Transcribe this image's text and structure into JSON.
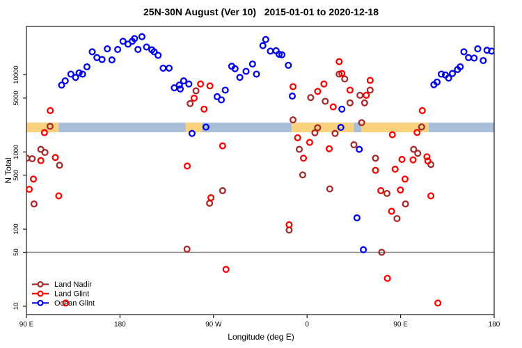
{
  "chart_data": {
    "type": "scatter",
    "title": "25N-30N August (Ver 10)   2015-01-01 to 2020-12-18",
    "xlabel": "Longitude (deg E)",
    "ylabel": "N Total",
    "y_scale": "log10",
    "y_range": [
      8,
      43000
    ],
    "x_range_deg": [
      90,
      540
    ],
    "grid": false,
    "legend_position": "bottom-left",
    "x_ticks": [
      {
        "deg": 90,
        "label": "90 E"
      },
      {
        "deg": 180,
        "label": "180"
      },
      {
        "deg": 270,
        "label": "90 W"
      },
      {
        "deg": 360,
        "label": "0"
      },
      {
        "deg": 450,
        "label": "90 E"
      },
      {
        "deg": 540,
        "label": "180"
      }
    ],
    "y_ticks": [
      {
        "value": 10,
        "label": "10"
      },
      {
        "value": 50,
        "label": "50"
      },
      {
        "value": 100,
        "label": "100"
      },
      {
        "value": 500,
        "label": "500"
      },
      {
        "value": 1000,
        "label": "1000"
      },
      {
        "value": 5000,
        "label": "5000"
      },
      {
        "value": 10000,
        "label": "10000"
      }
    ],
    "reference_line": {
      "value": 50,
      "color": "#808080"
    },
    "surface_band": {
      "value_range": [
        1800,
        2400
      ],
      "ocean_color": "#A9BFD9",
      "land_color": "#FAD17C",
      "land_segments_deg": [
        [
          90,
          121
        ],
        [
          243,
          259
        ],
        [
          345,
          405
        ],
        [
          412,
          477
        ]
      ]
    },
    "series": [
      {
        "name": "Land Nadir",
        "color": "#A52A2A",
        "points": [
          [
            112.7,
            2150
          ],
          [
            103.8,
            1080
          ],
          [
            107.8,
            986
          ],
          [
            95.5,
            818
          ],
          [
            90.3,
            830
          ],
          [
            121.8,
            673
          ],
          [
            97.3,
            212
          ],
          [
            253.1,
            6200
          ],
          [
            247.5,
            4240
          ],
          [
            278.7,
            315
          ],
          [
            266.2,
            216
          ],
          [
            346.5,
            2610
          ],
          [
            363.5,
            5070
          ],
          [
            377.5,
            4540
          ],
          [
            367.5,
            1770
          ],
          [
            370.2,
            2060
          ],
          [
            390.9,
            10200
          ],
          [
            396.2,
            8830
          ],
          [
            401.3,
            4330
          ],
          [
            410.9,
            5430
          ],
          [
            420.7,
            6330
          ],
          [
            415.3,
            4330
          ],
          [
            412.5,
            2400
          ],
          [
            405.1,
            1240
          ],
          [
            425.8,
            830
          ],
          [
            462.5,
            1080
          ],
          [
            466.5,
            960
          ],
          [
            479.1,
            687
          ],
          [
            436.9,
            290
          ],
          [
            454.7,
            212
          ],
          [
            446.5,
            137
          ],
          [
            470.2,
            2110
          ],
          [
            244.5,
            55
          ],
          [
            431.8,
            50
          ],
          [
            342.7,
            97
          ],
          [
            386.9,
            1740
          ],
          [
            352.5,
            1080
          ],
          [
            355.8,
            504
          ],
          [
            381.8,
            332
          ]
        ]
      },
      {
        "name": "Land Glint",
        "color": "#FF0000",
        "points": [
          [
            107.3,
            1780
          ],
          [
            112.9,
            3440
          ],
          [
            103.8,
            774
          ],
          [
            117.8,
            847
          ],
          [
            96.7,
            445
          ],
          [
            92.7,
            328
          ],
          [
            121.1,
            270
          ],
          [
            127.8,
            11
          ],
          [
            257.5,
            7600
          ],
          [
            266.5,
            7180
          ],
          [
            251.3,
            4990
          ],
          [
            260.9,
            3590
          ],
          [
            278.7,
            1200
          ],
          [
            244.7,
            656
          ],
          [
            267.5,
            255
          ],
          [
            282,
            30
          ],
          [
            346.5,
            7030
          ],
          [
            370.2,
            6100
          ],
          [
            376.2,
            7600
          ],
          [
            390.9,
            14800
          ],
          [
            393.5,
            10400
          ],
          [
            401.3,
            6330
          ],
          [
            420.7,
            8460
          ],
          [
            416.9,
            5430
          ],
          [
            385.1,
            3840
          ],
          [
            470.9,
            3440
          ],
          [
            350.9,
            1530
          ],
          [
            362.5,
            1330
          ],
          [
            381.3,
            1100
          ],
          [
            356.5,
            830
          ],
          [
            442,
            1670
          ],
          [
            465.8,
            1790
          ],
          [
            462,
            790
          ],
          [
            475.3,
            865
          ],
          [
            476.2,
            764
          ],
          [
            425.8,
            578
          ],
          [
            444.7,
            598
          ],
          [
            454.2,
            445
          ],
          [
            430.9,
            315
          ],
          [
            449.8,
            321
          ],
          [
            479.1,
            270
          ],
          [
            441.3,
            170
          ],
          [
            342.7,
            114
          ],
          [
            437.3,
            23
          ],
          [
            485.8,
            11
          ],
          [
            451.3,
            800
          ]
        ]
      },
      {
        "name": "Ocean Glint",
        "color": "#0000EE",
        "points": [
          [
            123.8,
            7360
          ],
          [
            127.3,
            8350
          ],
          [
            132.7,
            10200
          ],
          [
            137.3,
            9260
          ],
          [
            140.7,
            10600
          ],
          [
            144,
            10200
          ],
          [
            148.2,
            12700
          ],
          [
            153.3,
            19900
          ],
          [
            157.8,
            16700
          ],
          [
            162.7,
            15800
          ],
          [
            167.8,
            21700
          ],
          [
            172.2,
            15600
          ],
          [
            177.8,
            21300
          ],
          [
            182.9,
            27200
          ],
          [
            187.8,
            25000
          ],
          [
            191.8,
            27200
          ],
          [
            194,
            29500
          ],
          [
            201.1,
            31200
          ],
          [
            197.3,
            21300
          ],
          [
            205.5,
            22900
          ],
          [
            210.7,
            21100
          ],
          [
            212.9,
            19900
          ],
          [
            216.7,
            17900
          ],
          [
            221.5,
            12200
          ],
          [
            227.3,
            12200
          ],
          [
            232.2,
            6780
          ],
          [
            237.1,
            7360
          ],
          [
            238,
            6560
          ],
          [
            241.3,
            8350
          ],
          [
            246.2,
            7600
          ],
          [
            249.3,
            1740
          ],
          [
            262.7,
            2100
          ],
          [
            273.5,
            5210
          ],
          [
            277.5,
            4730
          ],
          [
            281.3,
            6330
          ],
          [
            287.5,
            12900
          ],
          [
            290.7,
            12000
          ],
          [
            295.3,
            9260
          ],
          [
            301.3,
            11100
          ],
          [
            307.5,
            13800
          ],
          [
            311.3,
            10200
          ],
          [
            320.2,
            28700
          ],
          [
            317.5,
            23900
          ],
          [
            324.7,
            20300
          ],
          [
            330.2,
            20500
          ],
          [
            333.1,
            18500
          ],
          [
            335.8,
            18200
          ],
          [
            342,
            13300
          ],
          [
            345.8,
            5300
          ],
          [
            392.5,
            2080
          ],
          [
            393.5,
            3590
          ],
          [
            410.2,
            1080
          ],
          [
            408,
            140
          ],
          [
            414.2,
            54
          ],
          [
            482,
            7450
          ],
          [
            485.1,
            8050
          ],
          [
            489.1,
            10200
          ],
          [
            493.1,
            9950
          ],
          [
            496.2,
            9070
          ],
          [
            499.8,
            10400
          ],
          [
            504.7,
            11700
          ],
          [
            507.3,
            12700
          ],
          [
            510.9,
            19900
          ],
          [
            515.3,
            16700
          ],
          [
            520.7,
            16500
          ],
          [
            524.2,
            21700
          ],
          [
            529.5,
            15300
          ],
          [
            533.1,
            20800
          ],
          [
            537.5,
            20300
          ]
        ]
      }
    ]
  }
}
